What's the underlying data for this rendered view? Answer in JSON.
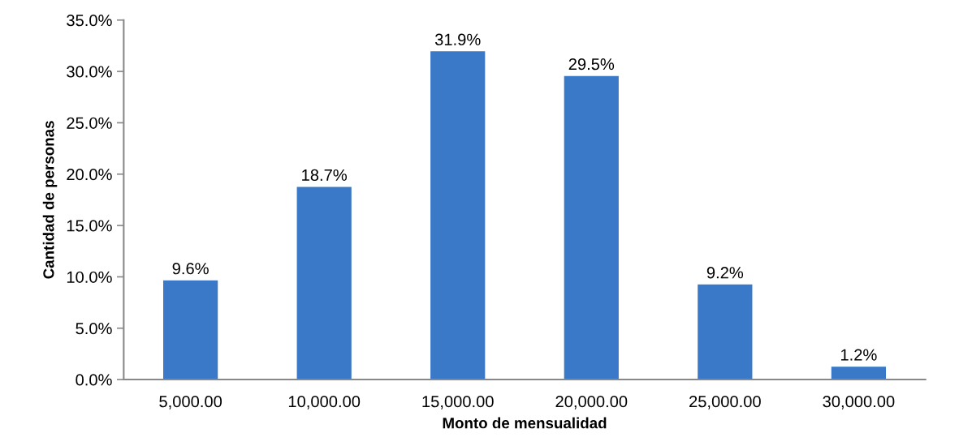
{
  "chart_data": {
    "type": "bar",
    "xlabel": "Monto de mensualidad",
    "ylabel": "Cantidad de personas",
    "categories": [
      "5,000.00",
      "10,000.00",
      "15,000.00",
      "20,000.00",
      "25,000.00",
      "30,000.00"
    ],
    "values": [
      9.6,
      18.7,
      31.9,
      29.5,
      9.2,
      1.2
    ],
    "value_labels": [
      "9.6%",
      "18.7%",
      "31.9%",
      "29.5%",
      "9.2%",
      "1.2%"
    ],
    "color": "#3a78c8",
    "ylim": [
      0,
      35
    ],
    "yticks": [
      {
        "value": 0,
        "label": "0.0%"
      },
      {
        "value": 5,
        "label": "5.0%"
      },
      {
        "value": 10,
        "label": "10.0%"
      },
      {
        "value": 15,
        "label": "15.0%"
      },
      {
        "value": 20,
        "label": "20.0%"
      },
      {
        "value": 25,
        "label": "25.0%"
      },
      {
        "value": 30,
        "label": "30.0%"
      },
      {
        "value": 35,
        "label": "35.0%"
      }
    ],
    "grid": false,
    "legend": false
  }
}
